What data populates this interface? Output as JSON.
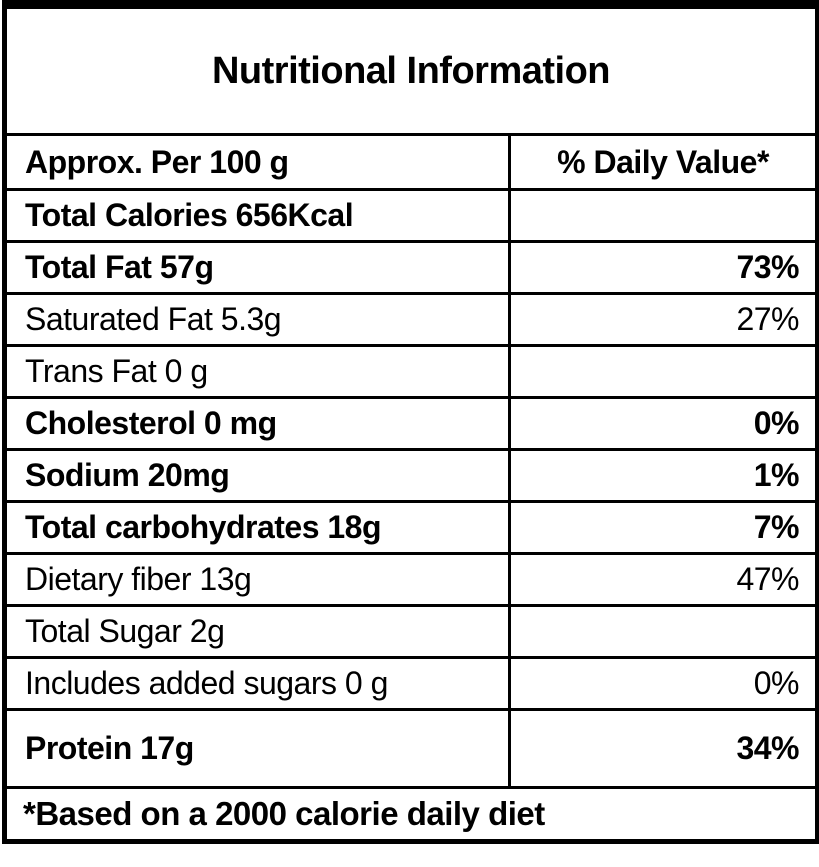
{
  "label": {
    "title": "Nutritional Information",
    "header": {
      "serving_column": "Approx. Per 100 g",
      "daily_value_column": "% Daily Value*"
    },
    "rows": [
      {
        "name": "Total Calories 656Kcal",
        "daily_value": "",
        "emphasis": "bold"
      },
      {
        "name": "Total Fat 57g",
        "daily_value": "73%",
        "emphasis": "bold"
      },
      {
        "name": "Saturated Fat 5.3g",
        "daily_value": "27%",
        "emphasis": "regular"
      },
      {
        "name": "Trans Fat 0 g",
        "daily_value": "",
        "emphasis": "regular"
      },
      {
        "name": "Cholesterol 0 mg",
        "daily_value": "0%",
        "emphasis": "bold"
      },
      {
        "name": "Sodium 20mg",
        "daily_value": "1%",
        "emphasis": "bold"
      },
      {
        "name": "Total carbohydrates 18g",
        "daily_value": "7%",
        "emphasis": "bold"
      },
      {
        "name": "Dietary fiber 13g",
        "daily_value": "47%",
        "emphasis": "regular"
      },
      {
        "name": "Total Sugar 2g",
        "daily_value": "",
        "emphasis": "regular"
      },
      {
        "name": "Includes added sugars 0 g",
        "daily_value": "0%",
        "emphasis": "regular"
      },
      {
        "name": "Protein 17g",
        "daily_value": "34%",
        "emphasis": "bold"
      }
    ],
    "footnote": "*Based on a 2000 calorie daily diet",
    "colors": {
      "text": "#000000",
      "background": "#ffffff",
      "border": "#000000"
    }
  }
}
